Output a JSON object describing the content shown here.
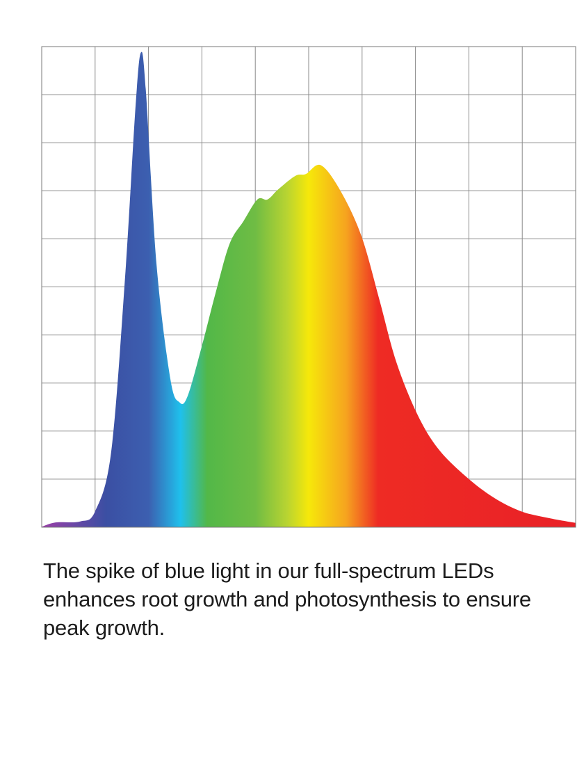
{
  "chart_data": {
    "type": "area",
    "title": "",
    "xlabel": "",
    "ylabel": "",
    "xlim": [
      0,
      10
    ],
    "ylim": [
      0,
      10
    ],
    "grid": true,
    "fill": "horizontal visible-spectrum gradient (violet to red)",
    "gradient_colors": [
      "#9b3fa8",
      "#3b4fa3",
      "#3c5fb0",
      "#1fc0ec",
      "#52b848",
      "#6fbc44",
      "#b9d431",
      "#f6e80a",
      "#f6a41f",
      "#ee2b24",
      "#e92127"
    ],
    "series": [
      {
        "x": [
          0,
          0.26,
          0.72,
          1.0,
          1.3,
          1.56,
          1.76,
          1.86,
          1.95,
          2.15,
          2.41,
          2.58,
          2.73,
          2.99,
          3.26,
          3.52,
          3.78,
          4.04,
          4.23,
          4.43,
          4.75,
          4.95,
          5.23,
          5.6,
          5.99,
          6.32,
          6.64,
          7.03,
          7.42,
          7.94,
          8.46,
          8.98,
          9.5,
          10
        ],
        "y": [
          0.01,
          0.1,
          0.12,
          0.33,
          1.56,
          5.18,
          8.8,
          9.88,
          9.09,
          5.47,
          3.08,
          2.6,
          2.72,
          3.73,
          4.89,
          5.9,
          6.37,
          6.82,
          6.82,
          7.03,
          7.31,
          7.35,
          7.53,
          6.99,
          6.05,
          4.75,
          3.44,
          2.36,
          1.64,
          1.06,
          0.62,
          0.33,
          0.19,
          0.09
        ]
      }
    ]
  },
  "caption": "The spike of blue light in our full-spectrum LEDs enhances root growth and photosynthesis to ensure peak growth."
}
